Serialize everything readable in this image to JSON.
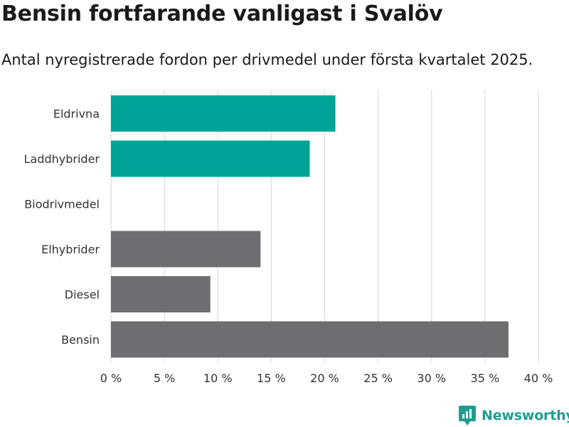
{
  "header": {
    "title": "Bensin fortfarande vanligast i Svalöv",
    "subtitle": "Antal nyregistrerade fordon per drivmedel under första kvartalet 2025."
  },
  "chart_data": {
    "type": "bar",
    "orientation": "horizontal",
    "categories": [
      "Eldrivna",
      "Laddhybrider",
      "Biodrivmedel",
      "Elhybrider",
      "Diesel",
      "Bensin"
    ],
    "values": [
      21.0,
      18.6,
      0,
      14.0,
      9.3,
      37.2
    ],
    "colors": [
      "#00a398",
      "#00a398",
      "#00a398",
      "#6e6d72",
      "#6e6d72",
      "#6e6d72"
    ],
    "xlim": [
      0,
      40
    ],
    "ticks": [
      0,
      5,
      10,
      15,
      20,
      25,
      30,
      35,
      40
    ],
    "tick_labels": [
      "0 %",
      "5 %",
      "10 %",
      "15 %",
      "20 %",
      "25 %",
      "30 %",
      "35 %",
      "40 %"
    ],
    "grid": true,
    "gridline_color": "#dddddd"
  },
  "branding": {
    "logo_text": "Newsworthy",
    "logo_color": "#1f9d92"
  }
}
